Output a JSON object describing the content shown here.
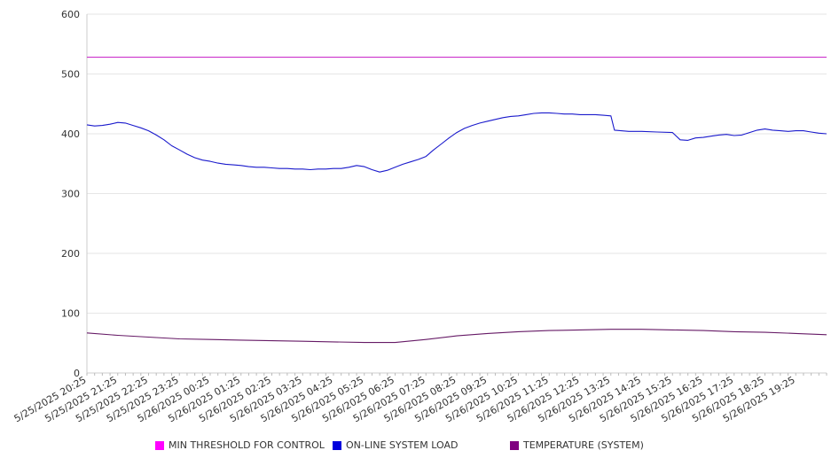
{
  "chart_data": {
    "type": "line",
    "title": "",
    "xlabel": "",
    "ylabel": "",
    "ylim": [
      0,
      600
    ],
    "yticks": [
      0,
      100,
      200,
      300,
      400,
      500,
      600
    ],
    "x_tick_labels": [
      "5/25/2025 20:25",
      "5/25/2025 21:25",
      "5/25/2025 22:25",
      "5/25/2025 23:25",
      "5/26/2025 00:25",
      "5/26/2025 01:25",
      "5/26/2025 02:25",
      "5/26/2025 03:25",
      "5/26/2025 04:25",
      "5/26/2025 05:25",
      "5/26/2025 06:25",
      "5/26/2025 07:25",
      "5/26/2025 08:25",
      "5/26/2025 09:25",
      "5/26/2025 10:25",
      "5/26/2025 11:25",
      "5/26/2025 12:25",
      "5/26/2025 13:25",
      "5/26/2025 14:25",
      "5/26/2025 15:25",
      "5/26/2025 16:25",
      "5/26/2025 17:25",
      "5/26/2025 18:25",
      "5/26/2025 19:25"
    ],
    "x_range": [
      "5/25/2025 20:25",
      "5/26/2025 20:25"
    ],
    "grid": "horizontal",
    "legend_position": "bottom",
    "series": [
      {
        "name": "MIN THRESHOLD FOR CONTROL",
        "color": "#ff00ff",
        "line_color": "#cc33cc",
        "points": [
          [
            "5/25/2025 20:25",
            528
          ],
          [
            "5/26/2025 20:25",
            528
          ]
        ]
      },
      {
        "name": "ON-LINE SYSTEM LOAD",
        "color": "#0000dd",
        "line_color": "#1a1acc",
        "points": [
          [
            "5/25/2025 20:25",
            415
          ],
          [
            "5/25/2025 20:40",
            413
          ],
          [
            "5/25/2025 20:55",
            414
          ],
          [
            "5/25/2025 21:10",
            416
          ],
          [
            "5/25/2025 21:25",
            419
          ],
          [
            "5/25/2025 21:40",
            418
          ],
          [
            "5/25/2025 21:55",
            414
          ],
          [
            "5/25/2025 22:10",
            410
          ],
          [
            "5/25/2025 22:25",
            405
          ],
          [
            "5/25/2025 22:40",
            398
          ],
          [
            "5/25/2025 22:55",
            390
          ],
          [
            "5/25/2025 23:10",
            380
          ],
          [
            "5/25/2025 23:25",
            373
          ],
          [
            "5/25/2025 23:40",
            366
          ],
          [
            "5/25/2025 23:55",
            360
          ],
          [
            "5/26/2025 00:10",
            356
          ],
          [
            "5/26/2025 00:25",
            354
          ],
          [
            "5/26/2025 00:40",
            351
          ],
          [
            "5/26/2025 00:55",
            349
          ],
          [
            "5/26/2025 01:10",
            348
          ],
          [
            "5/26/2025 01:25",
            347
          ],
          [
            "5/26/2025 01:40",
            345
          ],
          [
            "5/26/2025 01:55",
            344
          ],
          [
            "5/26/2025 02:10",
            344
          ],
          [
            "5/26/2025 02:25",
            343
          ],
          [
            "5/26/2025 02:40",
            342
          ],
          [
            "5/26/2025 02:55",
            342
          ],
          [
            "5/26/2025 03:10",
            341
          ],
          [
            "5/26/2025 03:25",
            341
          ],
          [
            "5/26/2025 03:40",
            340
          ],
          [
            "5/26/2025 03:55",
            341
          ],
          [
            "5/26/2025 04:10",
            341
          ],
          [
            "5/26/2025 04:25",
            342
          ],
          [
            "5/26/2025 04:40",
            342
          ],
          [
            "5/26/2025 04:55",
            344
          ],
          [
            "5/26/2025 05:10",
            347
          ],
          [
            "5/26/2025 05:25",
            345
          ],
          [
            "5/26/2025 05:40",
            340
          ],
          [
            "5/26/2025 05:55",
            336
          ],
          [
            "5/26/2025 06:10",
            339
          ],
          [
            "5/26/2025 06:25",
            344
          ],
          [
            "5/26/2025 06:40",
            349
          ],
          [
            "5/26/2025 06:55",
            353
          ],
          [
            "5/26/2025 07:10",
            357
          ],
          [
            "5/26/2025 07:25",
            362
          ],
          [
            "5/26/2025 07:40",
            373
          ],
          [
            "5/26/2025 07:55",
            383
          ],
          [
            "5/26/2025 08:10",
            393
          ],
          [
            "5/26/2025 08:25",
            402
          ],
          [
            "5/26/2025 08:40",
            409
          ],
          [
            "5/26/2025 08:55",
            414
          ],
          [
            "5/26/2025 09:10",
            418
          ],
          [
            "5/26/2025 09:25",
            421
          ],
          [
            "5/26/2025 09:40",
            424
          ],
          [
            "5/26/2025 09:55",
            427
          ],
          [
            "5/26/2025 10:10",
            429
          ],
          [
            "5/26/2025 10:25",
            430
          ],
          [
            "5/26/2025 10:40",
            432
          ],
          [
            "5/26/2025 10:55",
            434
          ],
          [
            "5/26/2025 11:10",
            435
          ],
          [
            "5/26/2025 11:25",
            435
          ],
          [
            "5/26/2025 11:40",
            434
          ],
          [
            "5/26/2025 11:55",
            433
          ],
          [
            "5/26/2025 12:10",
            433
          ],
          [
            "5/26/2025 12:25",
            432
          ],
          [
            "5/26/2025 12:40",
            432
          ],
          [
            "5/26/2025 12:55",
            432
          ],
          [
            "5/26/2025 13:10",
            431
          ],
          [
            "5/26/2025 13:25",
            430
          ],
          [
            "5/26/2025 13:32",
            406
          ],
          [
            "5/26/2025 13:45",
            405
          ],
          [
            "5/26/2025 14:00",
            404
          ],
          [
            "5/26/2025 14:25",
            404
          ],
          [
            "5/26/2025 14:55",
            403
          ],
          [
            "5/26/2025 15:25",
            402
          ],
          [
            "5/26/2025 15:40",
            390
          ],
          [
            "5/26/2025 15:55",
            389
          ],
          [
            "5/26/2025 16:10",
            393
          ],
          [
            "5/26/2025 16:25",
            394
          ],
          [
            "5/26/2025 16:40",
            396
          ],
          [
            "5/26/2025 16:55",
            398
          ],
          [
            "5/26/2025 17:10",
            399
          ],
          [
            "5/26/2025 17:25",
            397
          ],
          [
            "5/26/2025 17:40",
            398
          ],
          [
            "5/26/2025 17:55",
            402
          ],
          [
            "5/26/2025 18:10",
            406
          ],
          [
            "5/26/2025 18:25",
            408
          ],
          [
            "5/26/2025 18:40",
            406
          ],
          [
            "5/26/2025 18:55",
            405
          ],
          [
            "5/26/2025 19:10",
            404
          ],
          [
            "5/26/2025 19:25",
            405
          ],
          [
            "5/26/2025 19:40",
            405
          ],
          [
            "5/26/2025 19:55",
            403
          ],
          [
            "5/26/2025 20:10",
            401
          ],
          [
            "5/26/2025 20:25",
            400
          ]
        ]
      },
      {
        "name": "TEMPERATURE (SYSTEM)",
        "color": "#800080",
        "line_color": "#661a66",
        "points": [
          [
            "5/25/2025 20:25",
            67
          ],
          [
            "5/25/2025 21:25",
            63
          ],
          [
            "5/25/2025 22:25",
            60
          ],
          [
            "5/25/2025 23:25",
            57
          ],
          [
            "5/26/2025 00:25",
            56
          ],
          [
            "5/26/2025 01:25",
            55
          ],
          [
            "5/26/2025 02:25",
            54
          ],
          [
            "5/26/2025 03:25",
            53
          ],
          [
            "5/26/2025 04:25",
            52
          ],
          [
            "5/26/2025 05:25",
            51
          ],
          [
            "5/26/2025 06:25",
            51
          ],
          [
            "5/26/2025 07:25",
            56
          ],
          [
            "5/26/2025 08:25",
            62
          ],
          [
            "5/26/2025 09:25",
            66
          ],
          [
            "5/26/2025 10:25",
            69
          ],
          [
            "5/26/2025 11:25",
            71
          ],
          [
            "5/26/2025 12:25",
            72
          ],
          [
            "5/26/2025 13:25",
            73
          ],
          [
            "5/26/2025 14:25",
            73
          ],
          [
            "5/26/2025 15:25",
            72
          ],
          [
            "5/26/2025 16:25",
            71
          ],
          [
            "5/26/2025 17:25",
            69
          ],
          [
            "5/26/2025 18:25",
            68
          ],
          [
            "5/26/2025 19:25",
            66
          ],
          [
            "5/26/2025 20:25",
            64
          ]
        ]
      }
    ]
  }
}
